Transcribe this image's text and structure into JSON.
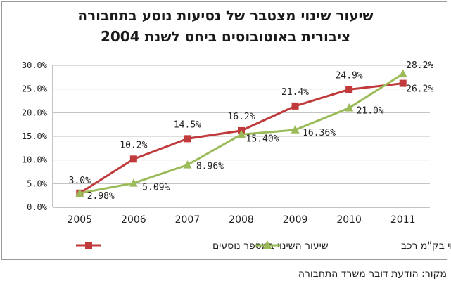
{
  "chart_data": {
    "type": "line",
    "title_line1": "שיעור שינוי מצטבר של נסיעות נוסע בתחבורה",
    "title_line2": "ציבורית באוטובוסים ביחס לשנת 2004",
    "x": [
      "2005",
      "2006",
      "2007",
      "2008",
      "2009",
      "2010",
      "2011"
    ],
    "yticks": [
      "0.0%",
      "5.0%",
      "10.0%",
      "15.0%",
      "20.0%",
      "25.0%",
      "30.0%"
    ],
    "ylim": [
      0,
      30
    ],
    "grid": true,
    "legend_position": "bottom",
    "series": [
      {
        "name": "שיעור השינוי במספר נוסעים",
        "color": "#c0393b",
        "marker": "square",
        "values": [
          3.0,
          10.2,
          14.5,
          16.2,
          21.4,
          24.9,
          26.2
        ],
        "labels": [
          "3.0%",
          "10.2%",
          "14.5%",
          "16.2%",
          "21.4%",
          "24.9%",
          "26.2%"
        ]
      },
      {
        "name": "שיעור השינוי בק\"מ רכב",
        "color": "#9bbb59",
        "marker": "triangle",
        "values": [
          2.98,
          5.09,
          8.96,
          15.4,
          16.36,
          21.0,
          28.2
        ],
        "labels": [
          "2.98%",
          "5.09%",
          "8.96%",
          "15.40%",
          "16.36%",
          "21.0%",
          "28.2%"
        ]
      }
    ]
  },
  "source": "מקור: הודעת דובר משרד התחבורה"
}
